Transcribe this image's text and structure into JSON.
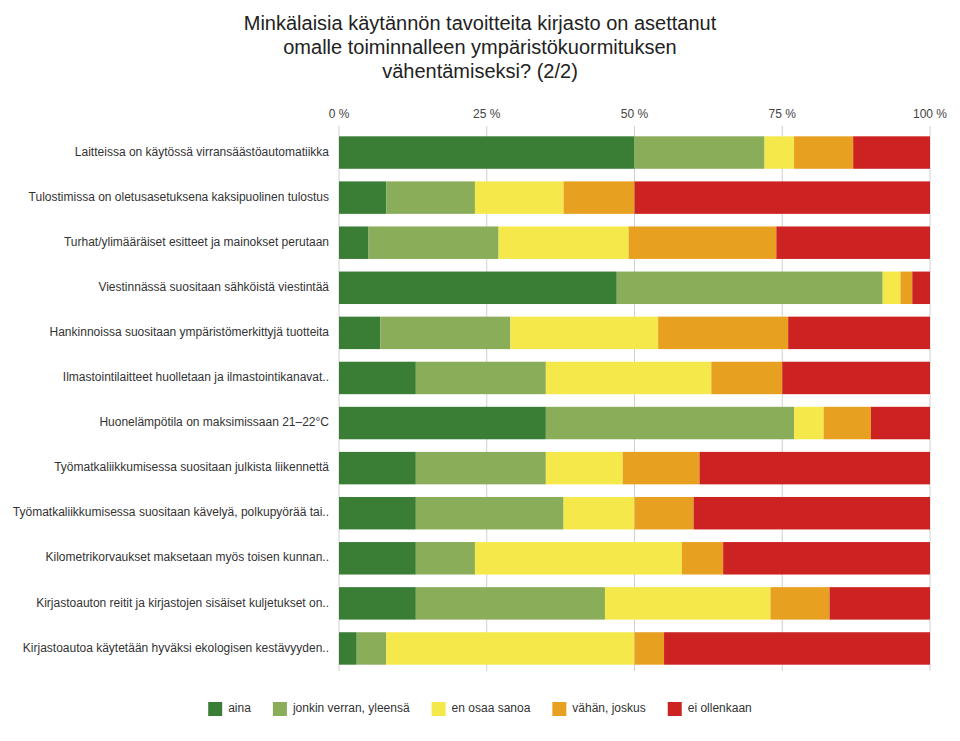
{
  "chart_data": {
    "type": "bar",
    "orientation": "horizontal",
    "stacked": true,
    "title": "Minkälaisia käytännön tavoitteita kirjasto on asettanut\nomalle toiminnalleen ympäristökuormituksen\nvähentämiseksi? (2/2)",
    "categories": [
      "Laitteissa on käytössä virransäästöautomatiikka",
      "Tulostimissa on oletusasetuksena kaksipuolinen tulostus",
      "Turhat/ylimääräiset esitteet ja mainokset perutaan",
      "Viestinnässä suositaan sähköistä viestintää",
      "Hankinnoissa suositaan ympäristömerkittyjä tuotteita",
      "Ilmastointilaitteet huolletaan ja ilmastointikanavat..",
      "Huonelämpötila on maksimissaan 21–22°C",
      "Työmatkaliikkumisessa suositaan julkista liikennettä",
      "Työmatkaliikkumisessa suositaan kävelyä, polkupyörää tai..",
      "Kilometrikorvaukset maksetaan myös toisen kunnan..",
      "Kirjastoauton reitit ja kirjastojen sisäiset kuljetukset on..",
      "Kirjastoautoa käytetään hyväksi ekologisen kestävyyden.."
    ],
    "series": [
      {
        "name": "aina",
        "color": "#3a7d35",
        "values": [
          50,
          8,
          5,
          47,
          7,
          13,
          35,
          13,
          13,
          13,
          13,
          3
        ]
      },
      {
        "name": "jonkin verran, yleensä",
        "color": "#8aad5a",
        "values": [
          22,
          15,
          22,
          45,
          22,
          22,
          42,
          22,
          25,
          10,
          32,
          5
        ]
      },
      {
        "name": "en osaa sanoa",
        "color": "#f5e84a",
        "values": [
          5,
          15,
          22,
          3,
          25,
          28,
          5,
          13,
          12,
          35,
          28,
          42
        ]
      },
      {
        "name": "vähän, joskus",
        "color": "#e8a020",
        "values": [
          10,
          12,
          25,
          2,
          22,
          12,
          8,
          13,
          10,
          7,
          10,
          5
        ]
      },
      {
        "name": "ei ollenkaan",
        "color": "#cc2222",
        "values": [
          13,
          50,
          26,
          3,
          24,
          25,
          10,
          39,
          40,
          35,
          17,
          45
        ]
      }
    ],
    "xlim": [
      0,
      100
    ],
    "xticks": [
      {
        "value": 0,
        "label": "0 %"
      },
      {
        "value": 25,
        "label": "25 %"
      },
      {
        "value": 50,
        "label": "50 %"
      },
      {
        "value": 75,
        "label": "75 %"
      },
      {
        "value": 100,
        "label": "100 %"
      }
    ],
    "grid": true,
    "legend": "bottom"
  }
}
